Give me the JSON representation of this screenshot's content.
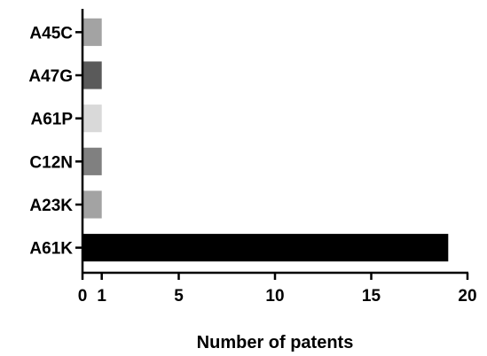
{
  "chart_data": {
    "type": "bar",
    "orientation": "horizontal",
    "categories": [
      "A45C",
      "A47G",
      "A61P",
      "C12N",
      "A23K",
      "A61K"
    ],
    "values": [
      1,
      1,
      1,
      1,
      1,
      19
    ],
    "bar_colors": [
      "#a3a3a3",
      "#5a5a5a",
      "#d9d9d9",
      "#808080",
      "#a3a3a3",
      "#000000"
    ],
    "xlabel": "Number of patents",
    "ylabel": "",
    "title": "",
    "xlim": [
      0,
      20
    ],
    "xticks": [
      0,
      1,
      5,
      10,
      15,
      20
    ],
    "grid": false
  }
}
